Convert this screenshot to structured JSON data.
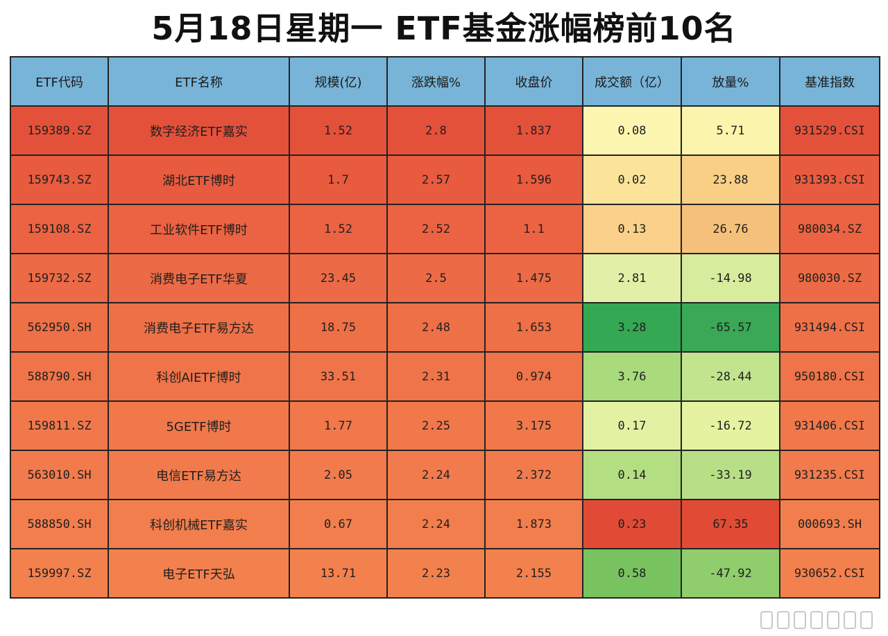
{
  "title": "5月18日星期一  ETF基金涨幅榜前10名",
  "chart_data": {
    "type": "table",
    "columns": [
      "ETF代码",
      "ETF名称",
      "规模(亿)",
      "涨跌幅%",
      "收盘价",
      "成交额（亿）",
      "放量%",
      "基准指数"
    ],
    "rows": [
      [
        "159389.SZ",
        "数字经济ETF嘉实",
        "1.52",
        "2.8",
        "1.837",
        "0.08",
        "5.71",
        "931529.CSI"
      ],
      [
        "159743.SZ",
        "湖北ETF博时",
        "1.7",
        "2.57",
        "1.596",
        "0.02",
        "23.88",
        "931393.CSI"
      ],
      [
        "159108.SZ",
        "工业软件ETF博时",
        "1.52",
        "2.52",
        "1.1",
        "0.13",
        "26.76",
        "980034.SZ"
      ],
      [
        "159732.SZ",
        "消费电子ETF华夏",
        "23.45",
        "2.5",
        "1.475",
        "2.81",
        "-14.98",
        "980030.SZ"
      ],
      [
        "562950.SH",
        "消费电子ETF易方达",
        "18.75",
        "2.48",
        "1.653",
        "3.28",
        "-65.57",
        "931494.CSI"
      ],
      [
        "588790.SH",
        "科创AIETF博时",
        "33.51",
        "2.31",
        "0.974",
        "3.76",
        "-28.44",
        "950180.CSI"
      ],
      [
        "159811.SZ",
        "5GETF博时",
        "1.77",
        "2.25",
        "3.175",
        "0.17",
        "-16.72",
        "931406.CSI"
      ],
      [
        "563010.SH",
        "电信ETF易方达",
        "2.05",
        "2.24",
        "2.372",
        "0.14",
        "-33.19",
        "931235.CSI"
      ],
      [
        "588850.SH",
        "科创机械ETF嘉实",
        "0.67",
        "2.24",
        "1.873",
        "0.23",
        "67.35",
        "000693.SH"
      ],
      [
        "159997.SZ",
        "电子ETF天弘",
        "13.71",
        "2.23",
        "2.155",
        "0.58",
        "-47.92",
        "930652.CSI"
      ]
    ],
    "row_colors": [
      "#e4513a",
      "#e85b3e",
      "#eb6342",
      "#ec6a45",
      "#ee7047",
      "#ef7449",
      "#f0784b",
      "#f17b4c",
      "#f27e4d",
      "#f3814e"
    ],
    "volume_colors": [
      "#fdf6b0",
      "#fce39a",
      "#fbd08a",
      "#e1f0a6",
      "#34a853",
      "#a9da7c",
      "#e3f1a2",
      "#b4de82",
      "#e14b36",
      "#78c360"
    ],
    "ratio_colors": [
      "#fbf4ac",
      "#f8cf85",
      "#f5c07a",
      "#d7ec9d",
      "#3aa856",
      "#c2e48e",
      "#e5f29f",
      "#b8df86",
      "#e14b36",
      "#90cd6c"
    ]
  }
}
